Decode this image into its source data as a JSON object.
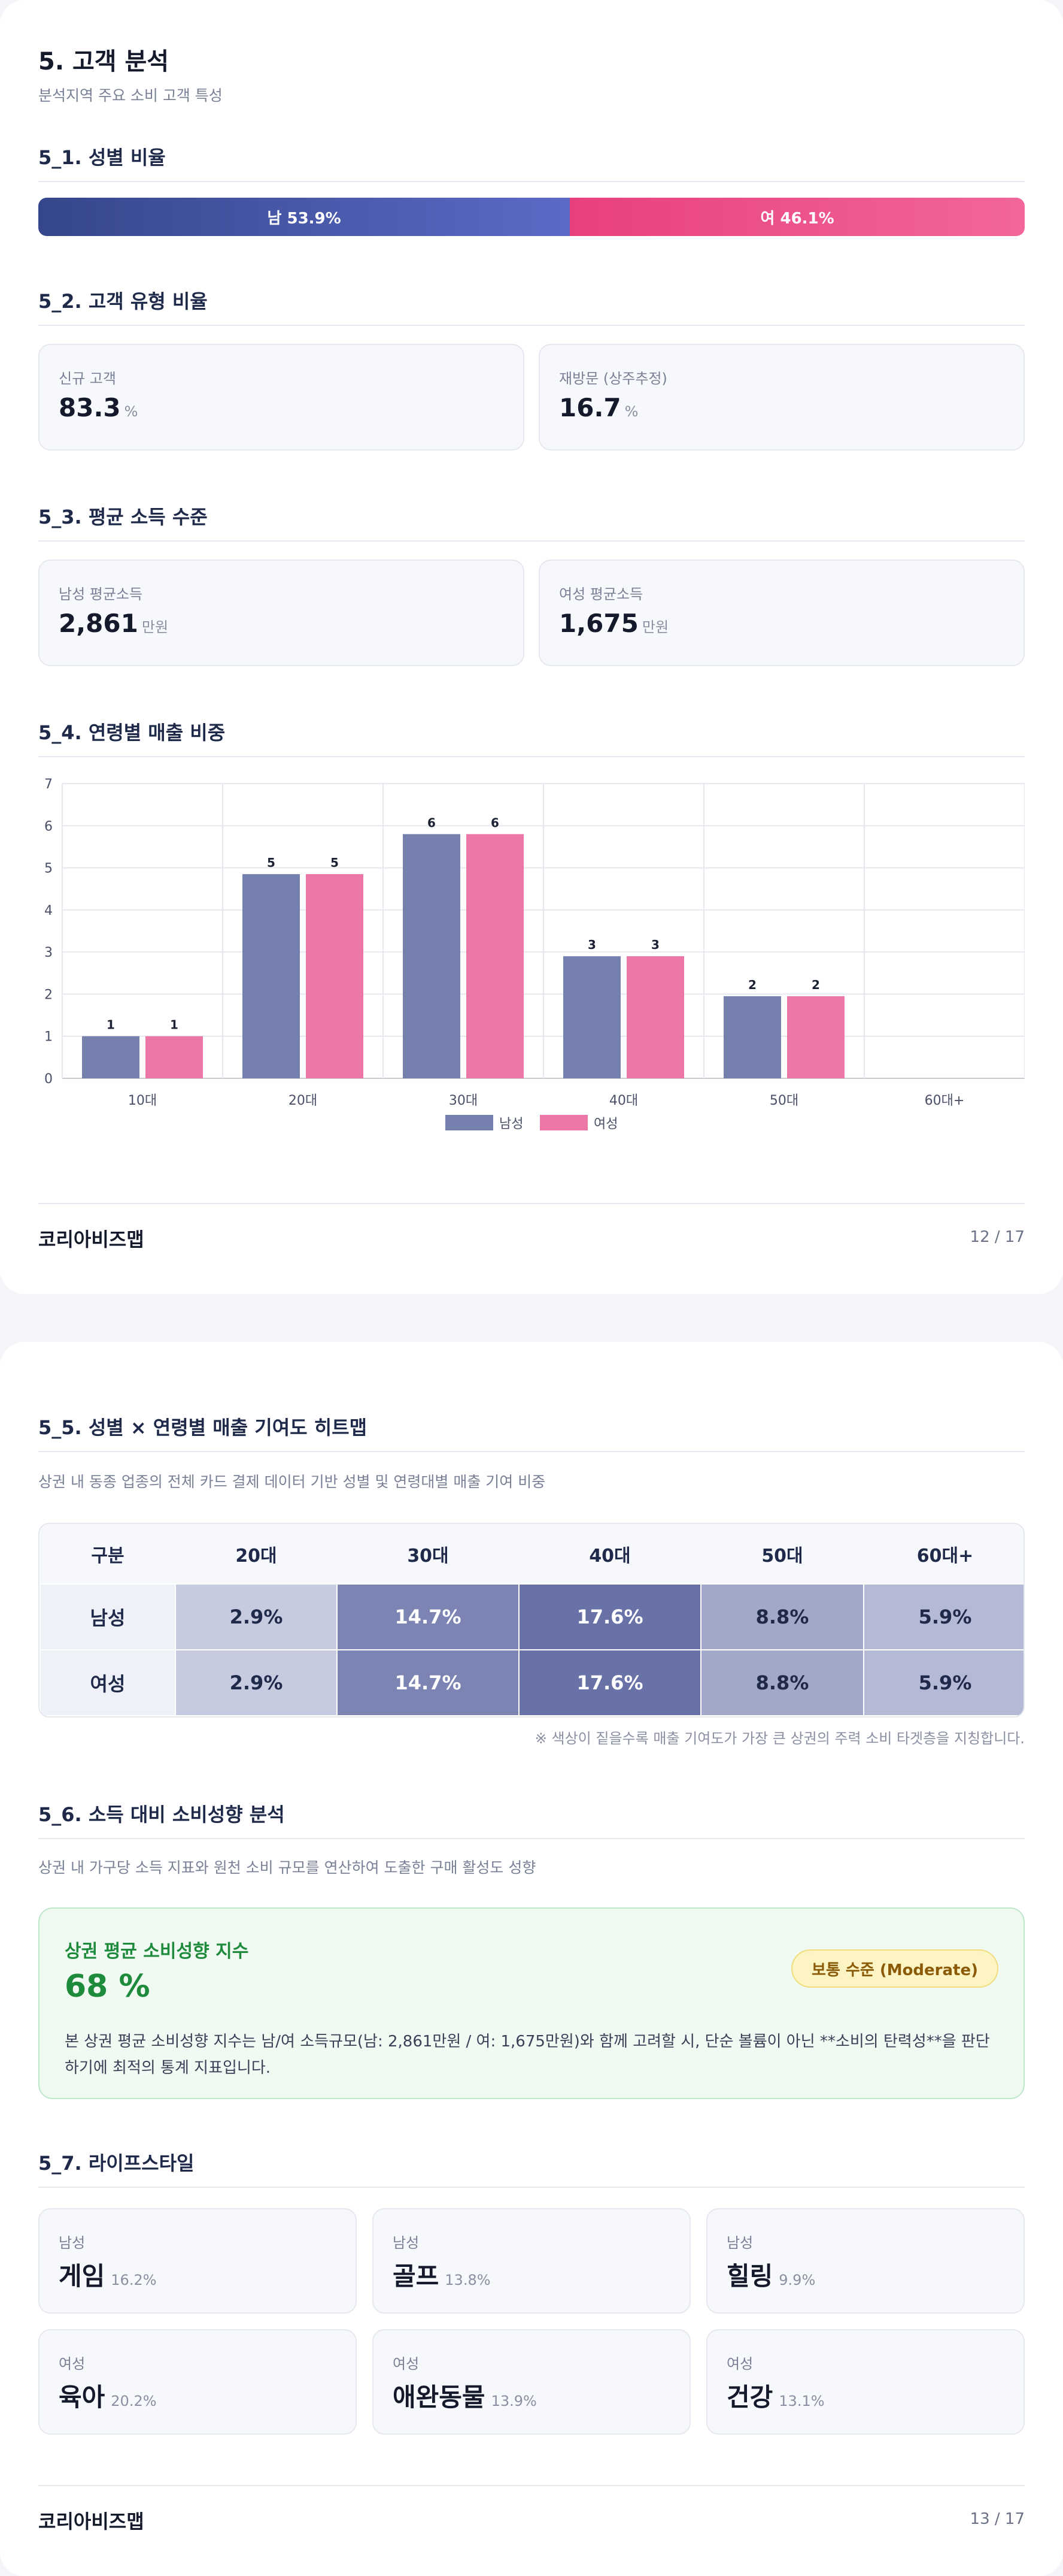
{
  "page1": {
    "title": "5. 고객 분석",
    "subtitle": "분석지역 주요 소비 고객 특성",
    "sec51": {
      "title": "5_1. 성별 비율",
      "male_label": "남 53.9%",
      "female_label": "여 46.1%",
      "male_share": 53.9,
      "female_share": 46.1,
      "male_color": "#4c5aab",
      "female_color": "#ec4d88"
    },
    "sec52": {
      "title": "5_2. 고객 유형 비율",
      "cards": [
        {
          "label": "신규 고객",
          "value": "83.3",
          "unit": "%"
        },
        {
          "label": "재방문 (상주추정)",
          "value": "16.7",
          "unit": "%"
        }
      ]
    },
    "sec53": {
      "title": "5_3. 평균 소득 수준",
      "cards": [
        {
          "label": "남성 평균소득",
          "value": "2,861",
          "unit": "만원"
        },
        {
          "label": "여성 평균소득",
          "value": "1,675",
          "unit": "만원"
        }
      ]
    },
    "sec54": {
      "title": "5_4. 연령별 매출 비중"
    },
    "footer": {
      "brand": "코리아비즈맵",
      "page": "12 / 17"
    }
  },
  "chart_data": {
    "type": "bar",
    "title": "",
    "categories": [
      "10대",
      "20대",
      "30대",
      "40대",
      "50대",
      "60대+"
    ],
    "series": [
      {
        "name": "남성",
        "values": [
          1,
          5,
          6,
          3,
          2,
          null
        ],
        "labels": [
          "1",
          "5",
          "6",
          "3",
          "2",
          ""
        ],
        "color": "#7680ae"
      },
      {
        "name": "여성",
        "values": [
          1,
          5,
          6,
          3,
          2,
          null
        ],
        "labels": [
          "1",
          "5",
          "6",
          "3",
          "2",
          ""
        ],
        "color": "#ec77a6"
      }
    ],
    "bar_heights_estimated": [
      1,
      4.85,
      5.8,
      2.9,
      1.95,
      0
    ],
    "ylim": [
      0,
      7
    ],
    "yticks": [
      "0",
      "1",
      "2",
      "3",
      "4",
      "5",
      "6",
      "7"
    ],
    "xlabel": "",
    "ylabel": "",
    "grid": true,
    "legend": "bottom-center"
  },
  "page2": {
    "sec55": {
      "title": "5_5. 성별 × 연령별 매출 기여도 히트맵",
      "desc": "상권 내 동종 업종의 전체 카드 결제 데이터 기반 성별 및 연령대별 매출 기여 비중",
      "headers": [
        "구분",
        "20대",
        "30대",
        "40대",
        "50대",
        "60대+"
      ],
      "rows": [
        {
          "label": "남성",
          "cells": [
            "2.9%",
            "14.7%",
            "17.6%",
            "8.8%",
            "5.9%"
          ]
        },
        {
          "label": "여성",
          "cells": [
            "2.9%",
            "14.7%",
            "17.6%",
            "8.8%",
            "5.9%"
          ]
        }
      ],
      "cell_values": [
        2.9,
        14.7,
        17.6,
        8.8,
        5.9
      ],
      "note": "※ 색상이 짙을수록 매출 기여도가 가장 큰 상권의 주력 소비 타겟층을 지칭합니다."
    },
    "sec56": {
      "title": "5_6. 소득 대비 소비성향 분석",
      "desc": "상권 내 가구당 소득 지표와 원천 소비 규모를 연산하여 도출한 구매 활성도 성향",
      "index_title": "상권 평균 소비성향 지수",
      "index_value": "68 %",
      "badge": "보통 수준 (Moderate)",
      "text": "본 상권 평균 소비성향 지수는 남/여 소득규모(남: 2,861만원 / 여: 1,675만원)와 함께 고려할 시, 단순 볼륨이 아닌 **소비의 탄력성**을 판단하기에 최적의 통계 지표입니다."
    },
    "sec57": {
      "title": "5_7. 라이프스타일",
      "items": [
        {
          "gender": "남성",
          "name": "게임",
          "pct": "16.2%"
        },
        {
          "gender": "남성",
          "name": "골프",
          "pct": "13.8%"
        },
        {
          "gender": "남성",
          "name": "힐링",
          "pct": "9.9%"
        },
        {
          "gender": "여성",
          "name": "육아",
          "pct": "20.2%"
        },
        {
          "gender": "여성",
          "name": "애완동물",
          "pct": "13.9%"
        },
        {
          "gender": "여성",
          "name": "건강",
          "pct": "13.1%"
        }
      ]
    },
    "footer": {
      "brand": "코리아비즈맵",
      "page": "13 / 17"
    }
  }
}
